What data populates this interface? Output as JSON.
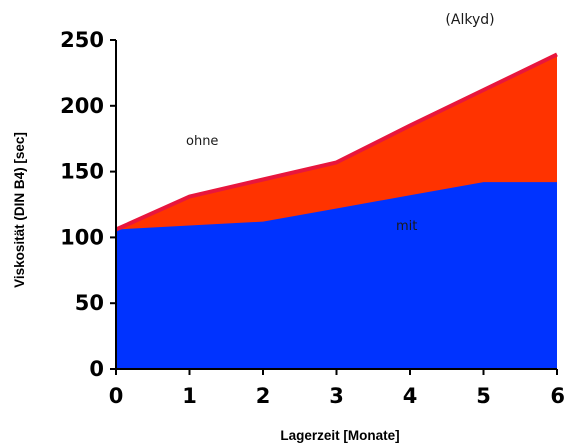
{
  "chart_data": {
    "type": "area",
    "x": [
      0,
      1,
      2,
      3,
      4,
      5,
      6
    ],
    "series": [
      {
        "name": "ohne",
        "values": [
          106,
          131,
          144,
          157,
          185,
          212,
          239
        ]
      },
      {
        "name": "mit",
        "values": [
          106,
          109,
          112,
          122,
          132,
          142,
          142
        ]
      }
    ],
    "colors": {
      "ohne": "#ff3300",
      "mit": "#0033ff",
      "outline": "#e8163c"
    },
    "title": "(Alkyd)",
    "xlabel": "Lagerzeit [Monate]",
    "ylabel": "Viskosität (DIN B4) [sec]",
    "xlim": [
      0,
      6
    ],
    "ylim": [
      0,
      250
    ],
    "xticks": [
      "0",
      "1",
      "2",
      "3",
      "4",
      "5",
      "6"
    ],
    "yticks": [
      "0",
      "50",
      "100",
      "150",
      "200",
      "250"
    ],
    "annotations": [
      "ohne",
      "mit"
    ],
    "grid": false,
    "legend": "none"
  }
}
